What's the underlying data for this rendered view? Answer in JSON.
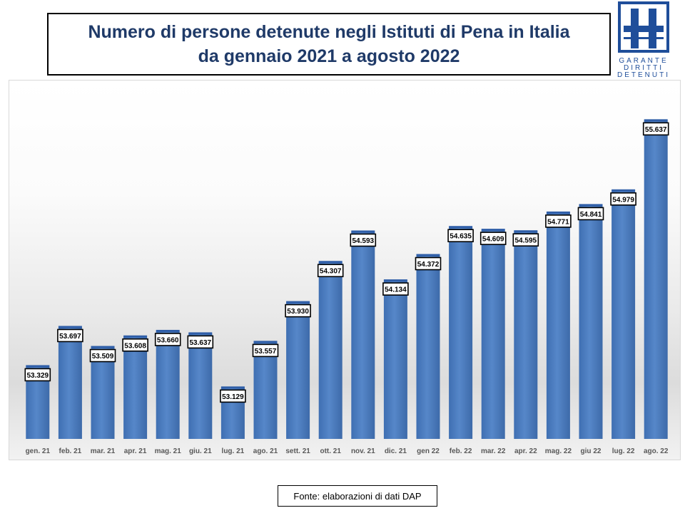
{
  "title": {
    "line1": "Numero di persone detenute negli Istituti di Pena in Italia",
    "line2": "da gennaio 2021 a agosto 2022"
  },
  "logo": {
    "text_lines": [
      "GARANTE",
      "DIRITTI",
      "DETENUTI"
    ],
    "color": "#1f4e9a"
  },
  "source": "Fonte: elaborazioni di dati DAP",
  "colors": {
    "bar": "#4a7cc0",
    "bar_top": "#2f5ea8",
    "title": "#1f3a68"
  },
  "chart_data": {
    "type": "bar",
    "title": "Numero di persone detenute negli Istituti di Pena in Italia da gennaio 2021 a agosto 2022",
    "xlabel": "",
    "ylabel": "",
    "grid": false,
    "legend": "none",
    "categories": [
      "gen. 21",
      "feb. 21",
      "mar. 21",
      "apr. 21",
      "mag. 21",
      "giu. 21",
      "lug. 21",
      "ago. 21",
      "sett. 21",
      "ott. 21",
      "nov. 21",
      "dic. 21",
      "gen 22",
      "feb. 22",
      "mar. 22",
      "apr. 22",
      "mag. 22",
      "giu 22",
      "lug. 22",
      "ago. 22"
    ],
    "values": [
      53329,
      53697,
      53509,
      53608,
      53660,
      53637,
      53129,
      53557,
      53930,
      54307,
      54593,
      54134,
      54372,
      54635,
      54609,
      54595,
      54771,
      54841,
      54979,
      55637
    ],
    "labels": [
      "53.329",
      "53.697",
      "53.509",
      "53.608",
      "53.660",
      "53.637",
      "53.129",
      "53.557",
      "53.930",
      "54.307",
      "54.593",
      "54.134",
      "54.372",
      "54.635",
      "54.609",
      "54.595",
      "54.771",
      "54.841",
      "54.979",
      "55.637"
    ],
    "ylim": [
      52650,
      55780
    ]
  }
}
